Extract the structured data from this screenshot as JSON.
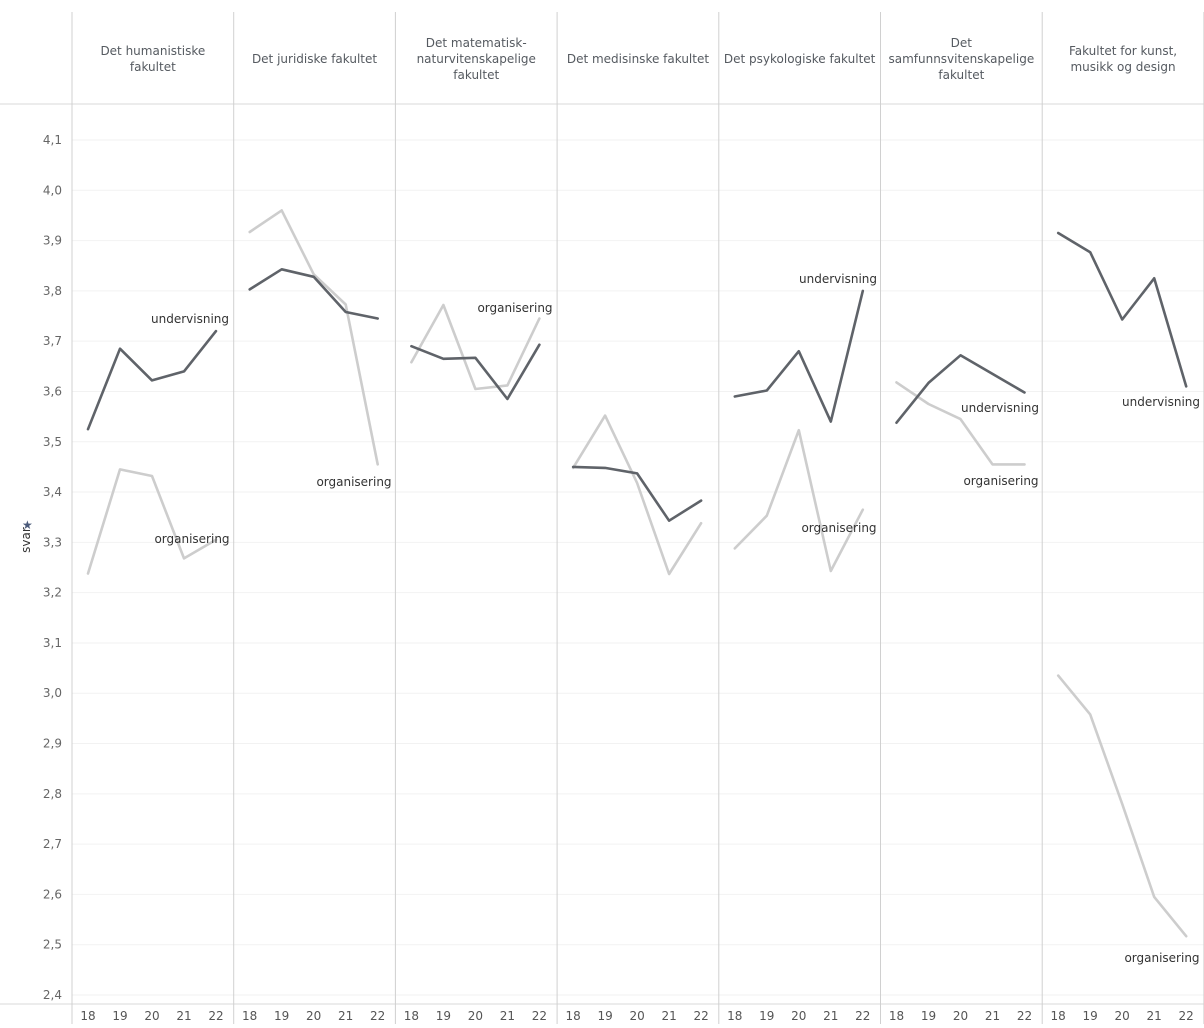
{
  "chart_data": {
    "type": "line",
    "ylabel": "svar",
    "ylim": [
      2.4,
      4.1
    ],
    "yticks": [
      "4,1",
      "4,0",
      "3,9",
      "3,8",
      "3,7",
      "3,6",
      "3,5",
      "3,4",
      "3,3",
      "3,2",
      "3,1",
      "3,0",
      "2,9",
      "2,8",
      "2,7",
      "2,6",
      "2,5",
      "2,4"
    ],
    "x": [
      "18",
      "19",
      "20",
      "21",
      "22"
    ],
    "colors": {
      "undervisning": "#5f6369",
      "organisering": "#cdcdcd"
    },
    "panels": [
      {
        "title": "Det humanistiske fakultet",
        "series": [
          {
            "name": "undervisning",
            "values": [
              3.525,
              3.685,
              3.622,
              3.64,
              3.72
            ]
          },
          {
            "name": "organisering",
            "values": [
              3.238,
              3.445,
              3.432,
              3.268,
              3.305
            ]
          }
        ]
      },
      {
        "title": "Det juridiske fakultet",
        "series": [
          {
            "name": "undervisning",
            "values": [
              3.803,
              3.843,
              3.828,
              3.758,
              3.745
            ]
          },
          {
            "name": "organisering",
            "values": [
              3.917,
              3.96,
              3.833,
              3.773,
              3.455
            ]
          }
        ]
      },
      {
        "title": "Det matematisk-naturvitenskapelige fakultet",
        "series": [
          {
            "name": "undervisning",
            "values": [
              3.69,
              3.665,
              3.667,
              3.585,
              3.693
            ]
          },
          {
            "name": "organisering",
            "values": [
              3.658,
              3.772,
              3.605,
              3.612,
              3.745
            ]
          }
        ]
      },
      {
        "title": "Det medisinske fakultet",
        "series": [
          {
            "name": "undervisning",
            "values": [
              3.45,
              3.448,
              3.437,
              3.343,
              3.383
            ]
          },
          {
            "name": "organisering",
            "values": [
              3.448,
              3.552,
              3.418,
              3.237,
              3.338
            ]
          }
        ]
      },
      {
        "title": "Det psykologiske fakultet",
        "series": [
          {
            "name": "undervisning",
            "values": [
              3.59,
              3.602,
              3.68,
              3.54,
              3.8
            ]
          },
          {
            "name": "organisering",
            "values": [
              3.288,
              3.353,
              3.523,
              3.243,
              3.365
            ]
          }
        ]
      },
      {
        "title": "Det samfunnsvitenskapelige fakultet",
        "series": [
          {
            "name": "undervisning",
            "values": [
              3.538,
              3.617,
              3.672,
              3.635,
              3.598
            ]
          },
          {
            "name": "organisering",
            "values": [
              3.618,
              3.575,
              3.545,
              3.455,
              3.455
            ]
          }
        ]
      },
      {
        "title": "Fakultet for kunst, musikk og design",
        "series": [
          {
            "name": "undervisning",
            "values": [
              3.915,
              3.877,
              3.743,
              3.825,
              3.61
            ]
          },
          {
            "name": "organisering",
            "values": [
              3.035,
              2.958,
              2.78,
              2.595,
              2.517
            ]
          }
        ]
      }
    ]
  }
}
